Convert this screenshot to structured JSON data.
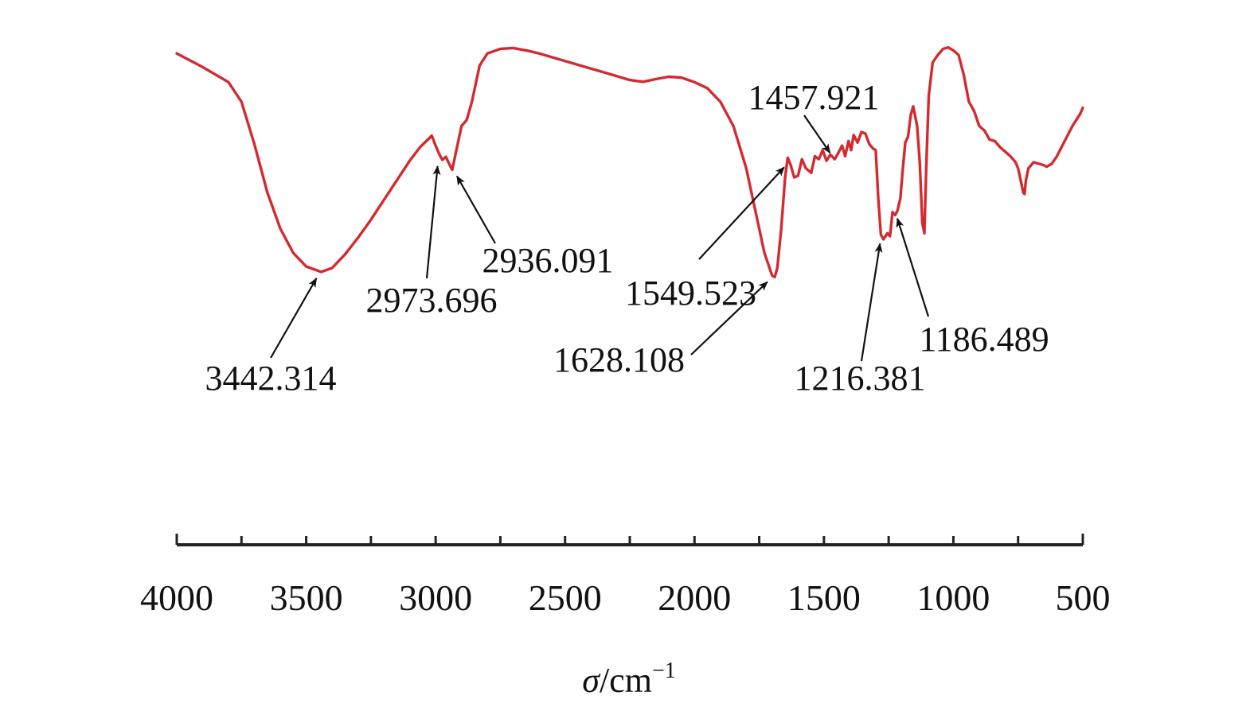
{
  "chart_data": {
    "type": "line",
    "title": "",
    "xlabel_symbol": "σ",
    "xlabel_unit": "/cm",
    "xlabel_exponent": "−1",
    "xlim": [
      4000,
      500
    ],
    "x_reversed": true,
    "y_axis_shown": false,
    "grid": false,
    "x_ticks": [
      4000,
      3500,
      3000,
      2500,
      2000,
      1500,
      1000,
      500
    ],
    "x_minor_step": 250,
    "line_color": "#d42a2f",
    "arrow_color": "#111111",
    "series": [
      {
        "y_units": "relative (0–100, top = 100)",
        "points": [
          [
            4000,
            96.0
          ],
          [
            3900,
            91.5
          ],
          [
            3800,
            86.5
          ],
          [
            3750,
            80.0
          ],
          [
            3700,
            66.0
          ],
          [
            3650,
            50.0
          ],
          [
            3600,
            38.0
          ],
          [
            3550,
            30.0
          ],
          [
            3500,
            25.5
          ],
          [
            3442,
            23.7
          ],
          [
            3400,
            25.0
          ],
          [
            3350,
            29.5
          ],
          [
            3300,
            35.0
          ],
          [
            3250,
            41.0
          ],
          [
            3200,
            47.5
          ],
          [
            3150,
            54.0
          ],
          [
            3100,
            60.5
          ],
          [
            3060,
            65.0
          ],
          [
            3030,
            67.5
          ],
          [
            3015,
            68.8
          ],
          [
            3000,
            65.5
          ],
          [
            2985,
            62.5
          ],
          [
            2974,
            60.8
          ],
          [
            2960,
            61.8
          ],
          [
            2948,
            59.5
          ],
          [
            2936,
            57.5
          ],
          [
            2920,
            64.0
          ],
          [
            2900,
            72.0
          ],
          [
            2880,
            74.0
          ],
          [
            2860,
            80.0
          ],
          [
            2830,
            92.0
          ],
          [
            2800,
            96.0
          ],
          [
            2750,
            97.5
          ],
          [
            2700,
            97.8
          ],
          [
            2650,
            97.0
          ],
          [
            2600,
            96.0
          ],
          [
            2500,
            93.5
          ],
          [
            2400,
            91.0
          ],
          [
            2300,
            88.5
          ],
          [
            2250,
            87.2
          ],
          [
            2200,
            86.6
          ],
          [
            2150,
            87.5
          ],
          [
            2100,
            88.3
          ],
          [
            2050,
            88.0
          ],
          [
            2000,
            86.5
          ],
          [
            1950,
            84.5
          ],
          [
            1900,
            80.0
          ],
          [
            1850,
            72.0
          ],
          [
            1800,
            58.0
          ],
          [
            1760,
            42.0
          ],
          [
            1730,
            30.0
          ],
          [
            1700,
            22.5
          ],
          [
            1690,
            22.0
          ],
          [
            1680,
            25.0
          ],
          [
            1665,
            38.0
          ],
          [
            1650,
            55.0
          ],
          [
            1640,
            61.5
          ],
          [
            1628,
            59.0
          ],
          [
            1615,
            55.0
          ],
          [
            1600,
            55.5
          ],
          [
            1585,
            61.0
          ],
          [
            1570,
            58.0
          ],
          [
            1549,
            56.5
          ],
          [
            1535,
            62.0
          ],
          [
            1520,
            61.0
          ],
          [
            1505,
            64.0
          ],
          [
            1490,
            60.5
          ],
          [
            1475,
            62.5
          ],
          [
            1458,
            61.0
          ],
          [
            1445,
            63.0
          ],
          [
            1430,
            65.5
          ],
          [
            1418,
            62.0
          ],
          [
            1405,
            67.0
          ],
          [
            1395,
            64.0
          ],
          [
            1385,
            69.0
          ],
          [
            1370,
            66.5
          ],
          [
            1355,
            70.0
          ],
          [
            1340,
            69.5
          ],
          [
            1325,
            66.0
          ],
          [
            1310,
            64.5
          ],
          [
            1300,
            64.0
          ],
          [
            1290,
            48.0
          ],
          [
            1280,
            36.0
          ],
          [
            1270,
            34.5
          ],
          [
            1255,
            36.5
          ],
          [
            1245,
            35.5
          ],
          [
            1235,
            43.5
          ],
          [
            1225,
            42.5
          ],
          [
            1216,
            44.0
          ],
          [
            1205,
            48.0
          ],
          [
            1195,
            58.0
          ],
          [
            1186,
            66.5
          ],
          [
            1175,
            68.5
          ],
          [
            1165,
            75.5
          ],
          [
            1155,
            78.5
          ],
          [
            1140,
            72.0
          ],
          [
            1130,
            60.0
          ],
          [
            1120,
            40.0
          ],
          [
            1112,
            36.5
          ],
          [
            1105,
            58.0
          ],
          [
            1095,
            82.0
          ],
          [
            1080,
            93.0
          ],
          [
            1060,
            95.5
          ],
          [
            1040,
            97.5
          ],
          [
            1020,
            98.0
          ],
          [
            1000,
            97.0
          ],
          [
            980,
            95.5
          ],
          [
            960,
            89.0
          ],
          [
            940,
            80.0
          ],
          [
            920,
            77.0
          ],
          [
            900,
            72.0
          ],
          [
            880,
            70.5
          ],
          [
            860,
            67.5
          ],
          [
            840,
            67.0
          ],
          [
            820,
            65.0
          ],
          [
            800,
            63.5
          ],
          [
            780,
            62.0
          ],
          [
            760,
            60.0
          ],
          [
            750,
            58.0
          ],
          [
            740,
            54.0
          ],
          [
            730,
            50.0
          ],
          [
            725,
            49.5
          ],
          [
            720,
            54.0
          ],
          [
            710,
            58.0
          ],
          [
            690,
            60.0
          ],
          [
            670,
            59.5
          ],
          [
            650,
            59.0
          ],
          [
            640,
            58.5
          ],
          [
            620,
            59.5
          ],
          [
            600,
            62.0
          ],
          [
            570,
            67.0
          ],
          [
            540,
            72.0
          ],
          [
            510,
            76.0
          ],
          [
            500,
            78.0
          ]
        ]
      }
    ],
    "annotations": [
      {
        "label": "3442.314",
        "peak": 3442
      },
      {
        "label": "2973.696",
        "peak": 2974
      },
      {
        "label": "2936.091",
        "peak": 2936
      },
      {
        "label": "1628.108",
        "peak": 1700
      },
      {
        "label": "1549.523",
        "peak": 1635
      },
      {
        "label": "1457.921",
        "peak": 1458
      },
      {
        "label": "1216.381",
        "peak": 1265
      },
      {
        "label": "1186.489",
        "peak": 1235
      }
    ]
  }
}
